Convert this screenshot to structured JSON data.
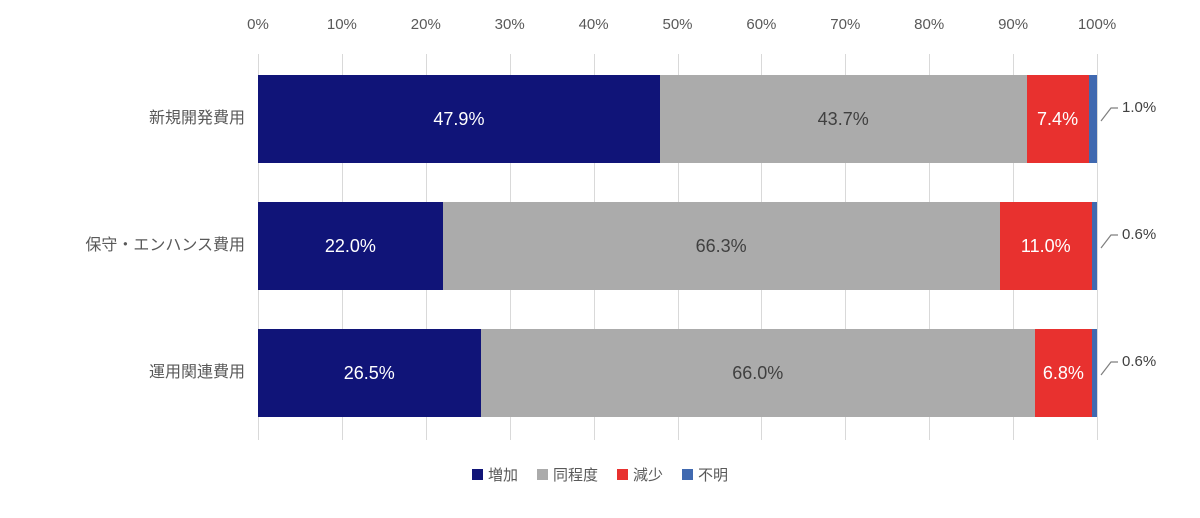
{
  "chart_data": {
    "type": "bar",
    "orientation": "horizontal-stacked",
    "title": "",
    "grid": true,
    "x_axis": {
      "min": 0,
      "max": 100,
      "tick_labels": [
        "0%",
        "10%",
        "20%",
        "30%",
        "40%",
        "50%",
        "60%",
        "70%",
        "80%",
        "90%",
        "100%"
      ]
    },
    "categories": [
      "新規開発費用",
      "保守・エンハンス費用",
      "運用関連費用"
    ],
    "series": [
      {
        "name": "増加",
        "color": "#101478",
        "label_color": "#FFFFFF",
        "labels_outside": false,
        "values": [
          47.9,
          22.0,
          26.5
        ],
        "labels": [
          "47.9%",
          "22.0%",
          "26.5%"
        ]
      },
      {
        "name": "同程度",
        "color": "#ABABAB",
        "label_color": "#404040",
        "labels_outside": false,
        "values": [
          43.7,
          66.3,
          66.0
        ],
        "labels": [
          "43.7%",
          "66.3%",
          "66.0%"
        ]
      },
      {
        "name": "減少",
        "color": "#E8312F",
        "label_color": "#FFFFFF",
        "labels_outside": false,
        "values": [
          7.4,
          11.0,
          6.8
        ],
        "labels": [
          "7.4%",
          "11.0%",
          "6.8%"
        ]
      },
      {
        "name": "不明",
        "color": "#4069B0",
        "label_color": "#404040",
        "labels_outside": true,
        "values": [
          1.0,
          0.6,
          0.6
        ],
        "labels": [
          "1.0%",
          "0.6%",
          "0.6%"
        ]
      }
    ],
    "legend": {
      "position": "bottom",
      "items": [
        "増加",
        "同程度",
        "減少",
        "不明"
      ]
    },
    "colors": {
      "axis_text": "#595959",
      "gridline": "#D9D9D9",
      "leader_line": "#7F7F7F",
      "outside_label": "#404040"
    }
  }
}
